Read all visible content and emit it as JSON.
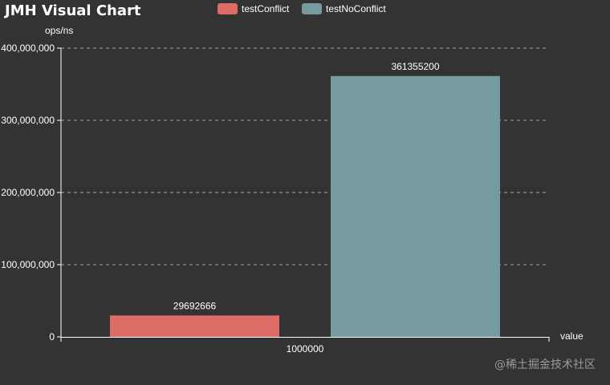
{
  "chart_data": {
    "type": "bar",
    "title": "JMH Visual Chart",
    "ylabel": "ops/ns",
    "xlabel": "value",
    "categories": [
      "1000000"
    ],
    "series": [
      {
        "name": "testConflict",
        "values": [
          29692666
        ],
        "color": "#dd6b66"
      },
      {
        "name": "testNoConflict",
        "values": [
          361355200
        ],
        "color": "#759aa0"
      }
    ],
    "ylim": [
      0,
      400000000
    ],
    "yticks": [
      0,
      100000000,
      200000000,
      300000000,
      400000000
    ],
    "ytick_labels": [
      "0",
      "100,000,000",
      "200,000,000",
      "300,000,000",
      "400,000,000"
    ],
    "grid": true,
    "legend_position": "top-center"
  },
  "watermark": "@稀土掘金技术社区",
  "colors": {
    "background": "#333333",
    "axis": "#ffffff",
    "grid": "#aaaaaa",
    "text": "#ffffff"
  }
}
